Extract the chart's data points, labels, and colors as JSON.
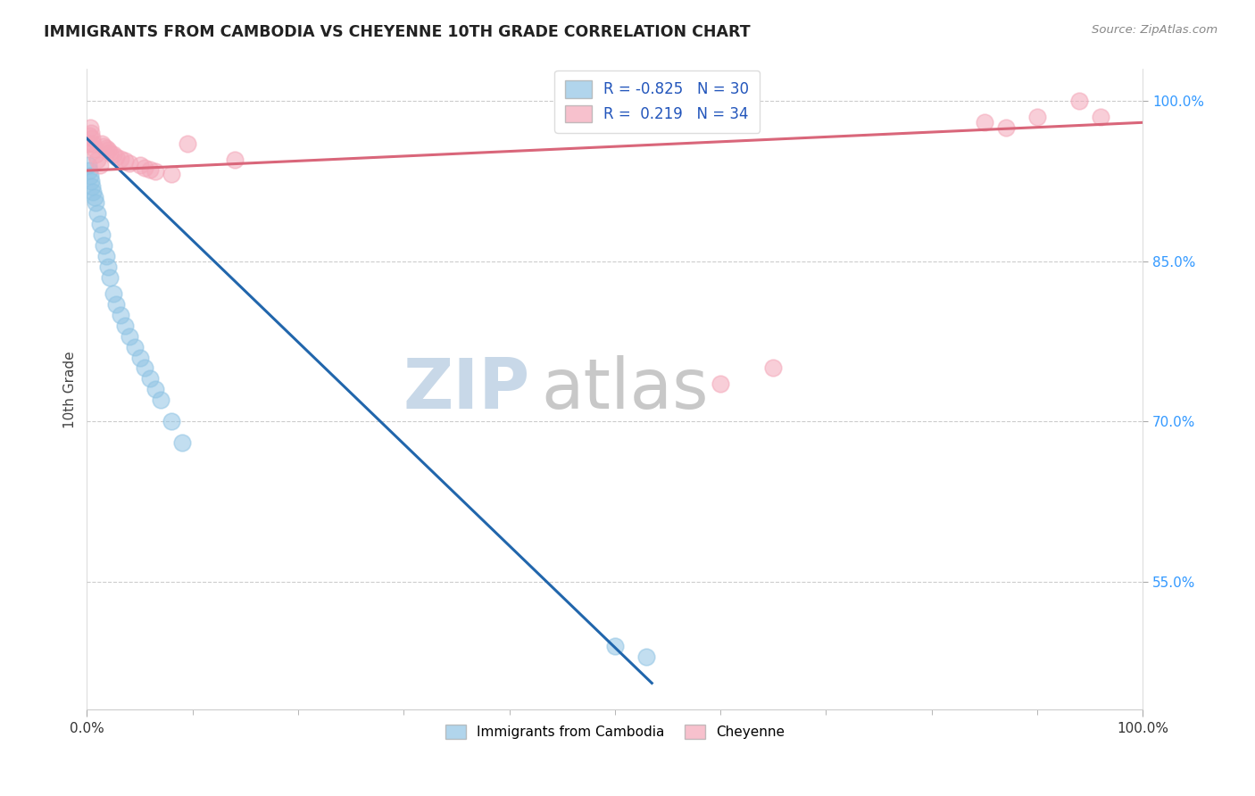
{
  "title": "IMMIGRANTS FROM CAMBODIA VS CHEYENNE 10TH GRADE CORRELATION CHART",
  "source": "Source: ZipAtlas.com",
  "ylabel": "10th Grade",
  "legend_blue_r": "R = -0.825",
  "legend_blue_n": "N = 30",
  "legend_pink_r": "R =  0.219",
  "legend_pink_n": "N = 34",
  "blue_scatter_x": [
    0.001,
    0.002,
    0.003,
    0.004,
    0.005,
    0.006,
    0.007,
    0.008,
    0.01,
    0.012,
    0.014,
    0.016,
    0.018,
    0.02,
    0.022,
    0.025,
    0.028,
    0.032,
    0.036,
    0.04,
    0.045,
    0.05,
    0.055,
    0.06,
    0.065,
    0.07,
    0.08,
    0.09,
    0.5,
    0.53
  ],
  "blue_scatter_y": [
    0.94,
    0.935,
    0.93,
    0.925,
    0.92,
    0.915,
    0.91,
    0.905,
    0.895,
    0.885,
    0.875,
    0.865,
    0.855,
    0.845,
    0.835,
    0.82,
    0.81,
    0.8,
    0.79,
    0.78,
    0.77,
    0.76,
    0.75,
    0.74,
    0.73,
    0.72,
    0.7,
    0.68,
    0.49,
    0.48
  ],
  "pink_scatter_x": [
    0.001,
    0.002,
    0.003,
    0.004,
    0.005,
    0.006,
    0.007,
    0.008,
    0.01,
    0.012,
    0.014,
    0.016,
    0.018,
    0.02,
    0.022,
    0.025,
    0.028,
    0.032,
    0.036,
    0.04,
    0.05,
    0.055,
    0.06,
    0.065,
    0.08,
    0.095,
    0.14,
    0.6,
    0.65,
    0.85,
    0.87,
    0.9,
    0.94,
    0.96
  ],
  "pink_scatter_y": [
    0.96,
    0.968,
    0.975,
    0.97,
    0.965,
    0.96,
    0.955,
    0.95,
    0.945,
    0.94,
    0.96,
    0.958,
    0.956,
    0.954,
    0.952,
    0.95,
    0.948,
    0.946,
    0.944,
    0.942,
    0.94,
    0.938,
    0.936,
    0.934,
    0.932,
    0.96,
    0.945,
    0.735,
    0.75,
    0.98,
    0.975,
    0.985,
    1.0,
    0.985
  ],
  "blue_line_x": [
    0.0,
    0.535
  ],
  "blue_line_y": [
    0.965,
    0.455
  ],
  "pink_line_x": [
    0.0,
    1.0
  ],
  "pink_line_y": [
    0.935,
    0.98
  ],
  "blue_color": "#90c4e4",
  "pink_color": "#f4a7b9",
  "blue_line_color": "#2166ac",
  "pink_line_color": "#d9667a",
  "title_color": "#222222",
  "source_color": "#888888",
  "grid_color": "#cccccc",
  "watermark_zip_color": "#c8d8e8",
  "watermark_atlas_color": "#c8c8c8",
  "bg_color": "#ffffff",
  "xmin": 0.0,
  "xmax": 1.0,
  "ymin": 0.43,
  "ymax": 1.03
}
